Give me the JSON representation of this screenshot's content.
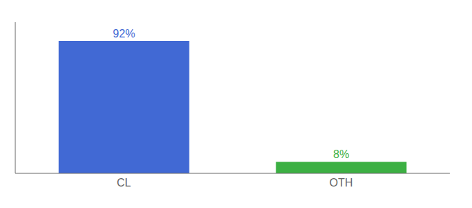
{
  "chart_data": {
    "type": "bar",
    "categories": [
      "CL",
      "OTH"
    ],
    "values": [
      92,
      8
    ],
    "value_labels": [
      "92%",
      "8%"
    ],
    "colors": [
      "#4169d4",
      "#3cb043"
    ],
    "ylim": [
      0,
      105
    ],
    "data_labels": true,
    "tick_labels": "x"
  }
}
